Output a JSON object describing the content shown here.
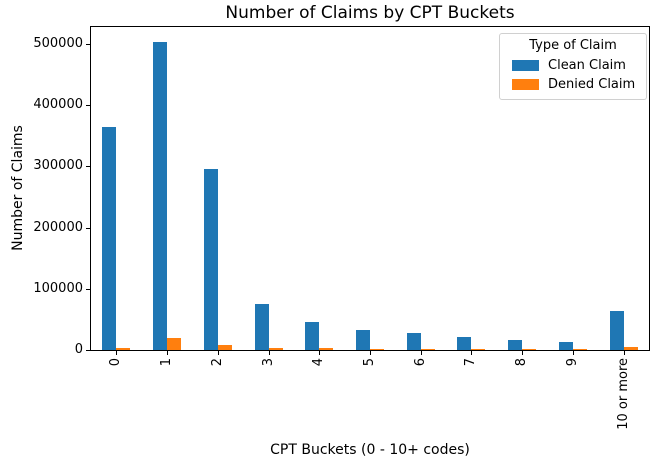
{
  "chart_data": {
    "type": "bar",
    "title": "Number of Claims by CPT Buckets",
    "xlabel": "CPT Buckets (0 - 10+ codes)",
    "ylabel": "Number of Claims",
    "categories": [
      "0",
      "1",
      "2",
      "3",
      "4",
      "5",
      "6",
      "7",
      "8",
      "9",
      "10 or more"
    ],
    "series": [
      {
        "name": "Clean Claim",
        "color": "#1f77b4",
        "values": [
          365000,
          504000,
          296000,
          76000,
          45000,
          33000,
          27000,
          21000,
          17000,
          13500,
          64000
        ]
      },
      {
        "name": "Denied Claim",
        "color": "#ff7f0e",
        "values": [
          4000,
          19500,
          8000,
          3300,
          2500,
          2000,
          2000,
          1800,
          1600,
          1500,
          5500
        ]
      }
    ],
    "legend": {
      "title": "Type of Claim",
      "position": "upper right"
    },
    "ylim": [
      0,
      528000
    ],
    "yticks": [
      0,
      100000,
      200000,
      300000,
      400000,
      500000
    ],
    "grid": false,
    "xtick_rotation": 90,
    "spine_color": "#000000",
    "background_color": "#ffffff"
  }
}
